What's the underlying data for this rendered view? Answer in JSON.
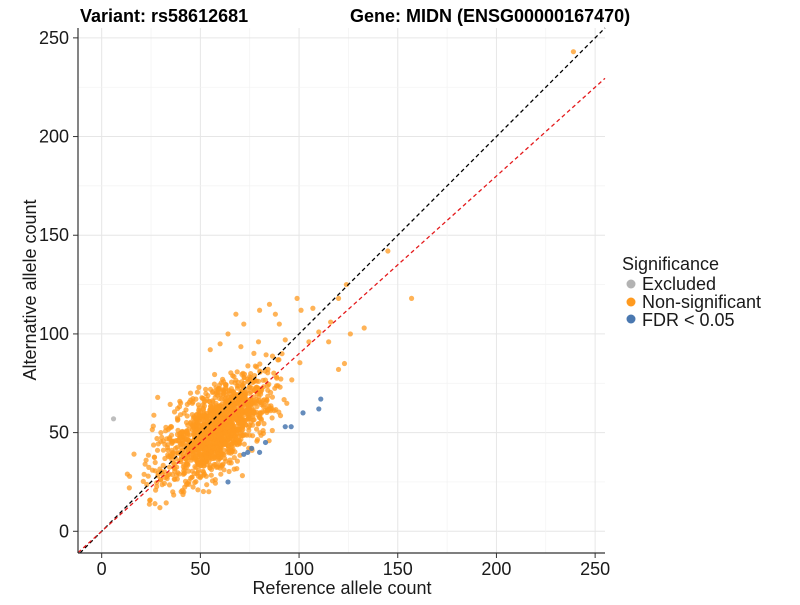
{
  "chart_data": {
    "type": "scatter",
    "title_variant": "Variant: rs58612681",
    "title_gene": "Gene: MIDN (ENSG00000167470)",
    "xlabel": "Reference allele count",
    "ylabel": "Alternative allele count",
    "xlim": [
      -12,
      255
    ],
    "ylim": [
      -11,
      255
    ],
    "xticks": [
      0,
      50,
      100,
      150,
      200,
      250
    ],
    "yticks": [
      0,
      50,
      100,
      150,
      200,
      250
    ],
    "grid": true,
    "legend": {
      "title": "Significance",
      "placement": "right",
      "entries": [
        {
          "label": "Excluded",
          "color": "#b3b3b3"
        },
        {
          "label": "Non-significant",
          "color": "#ff9a1f"
        },
        {
          "label": "FDR < 0.05",
          "color": "#4a78b0"
        }
      ]
    },
    "reference_lines": [
      {
        "name": "identity",
        "slope": 1.0,
        "intercept": 0,
        "color": "#000000",
        "style": "dashed"
      },
      {
        "name": "fitted",
        "slope": 0.9,
        "intercept": 0,
        "color": "#e41a1c",
        "style": "dashed"
      }
    ],
    "series": [
      {
        "name": "Excluded",
        "color": "#b3b3b3",
        "points": [
          [
            6,
            57
          ]
        ]
      },
      {
        "name": "FDR < 0.05",
        "color": "#4a78b0",
        "points": [
          [
            64,
            25
          ],
          [
            72,
            39
          ],
          [
            74,
            40
          ],
          [
            76,
            42
          ],
          [
            80,
            40
          ],
          [
            83,
            45
          ],
          [
            93,
            53
          ],
          [
            96,
            53
          ],
          [
            102,
            60
          ],
          [
            110,
            62
          ],
          [
            111,
            67
          ]
        ]
      },
      {
        "name": "Non-significant",
        "color": "#ff9a1f",
        "outliers": [
          [
            239,
            243
          ],
          [
            145,
            142
          ],
          [
            157,
            118
          ],
          [
            124,
            125
          ],
          [
            120,
            118
          ],
          [
            133,
            103
          ],
          [
            116,
            106
          ],
          [
            126,
            100
          ],
          [
            99,
            118
          ],
          [
            107,
            113
          ],
          [
            101,
            112
          ],
          [
            123,
            85
          ],
          [
            120,
            82
          ],
          [
            27,
            14
          ],
          [
            13,
            29
          ],
          [
            14,
            22
          ],
          [
            22,
            34
          ],
          [
            36,
            20
          ],
          [
            115,
            96
          ],
          [
            110,
            101
          ],
          [
            105,
            96
          ],
          [
            90,
            105
          ],
          [
            88,
            110
          ],
          [
            60,
            95
          ],
          [
            64,
            100
          ],
          [
            72,
            105
          ],
          [
            68,
            110
          ],
          [
            80,
            112
          ],
          [
            85,
            115
          ],
          [
            55,
            92
          ],
          [
            93,
            97
          ],
          [
            30,
            50
          ],
          [
            28,
            47
          ],
          [
            40,
            65
          ],
          [
            45,
            70
          ]
        ],
        "cloud": {
          "n": 1400,
          "center_ref": 58,
          "center_alt": 52,
          "spread_major": 17,
          "spread_minor": 8
        }
      }
    ]
  }
}
